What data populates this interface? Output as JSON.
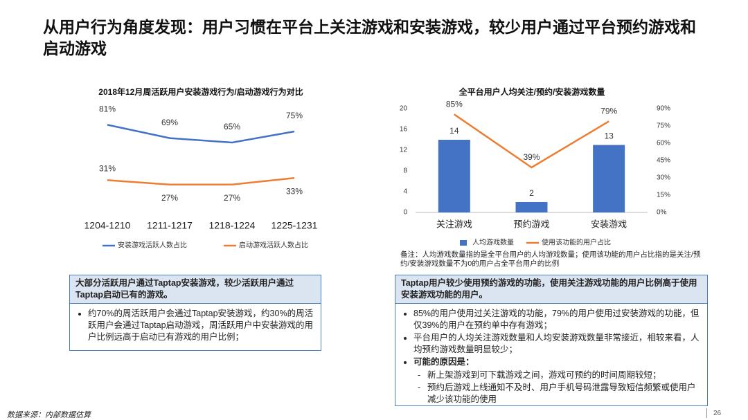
{
  "title": "从用户行为角度发现：用户习惯在平台上关注游戏和安装游戏，较少用户通过平台预约游戏和启动游戏",
  "chart_data": [
    {
      "type": "line",
      "title": "2018年12月周活跃用户安装游戏行为/启动游戏行为对比",
      "categories": [
        "1204-1210",
        "1211-1217",
        "1218-1224",
        "1225-1231"
      ],
      "series": [
        {
          "name": "安装游戏活跃人数占比",
          "color": "#4472c4",
          "values": [
            81,
            69,
            65,
            75
          ],
          "value_labels": [
            "81%",
            "69%",
            "65%",
            "75%"
          ]
        },
        {
          "name": "启动游戏活跃人数占比",
          "color": "#ed7d31",
          "values": [
            31,
            27,
            27,
            33
          ],
          "value_labels": [
            "31%",
            "27%",
            "27%",
            "33%"
          ]
        }
      ],
      "ylim": [
        0,
        100
      ]
    },
    {
      "type": "bar",
      "title": "全平台用户人均关注/预约/安装游戏数量",
      "categories": [
        "关注游戏",
        "预约游戏",
        "安装游戏"
      ],
      "series": [
        {
          "name": "人均游戏数量",
          "color": "#4472c4",
          "values": [
            14,
            2,
            13
          ]
        },
        {
          "name": "使用该功能的用户占比",
          "color": "#ed7d31",
          "type": "line",
          "axis": "y2",
          "values": [
            85,
            39,
            79
          ],
          "value_labels": [
            "85%",
            "39%",
            "79%"
          ]
        }
      ],
      "ylim": [
        0,
        20
      ],
      "yticks": [
        0,
        4,
        8,
        12,
        16,
        20
      ],
      "y2lim": [
        0,
        90
      ],
      "y2ticks": [
        {
          "value": 0,
          "label": "0%"
        },
        {
          "value": 15,
          "label": "15%"
        },
        {
          "value": 30,
          "label": "30%"
        },
        {
          "value": 45,
          "label": "45%"
        },
        {
          "value": 60,
          "label": "60%"
        },
        {
          "value": 75,
          "label": "75%"
        },
        {
          "value": 90,
          "label": "90%"
        }
      ],
      "note": "备注：人均游戏数量指的是全平台用户的人均游戏数量；使用该功能的用户占比指的是关注/预约/安装游戏数量不为0的用户占全平台用户的比例"
    }
  ],
  "boxes": [
    {
      "heading": "大部分活跃用户通过Taptap安装游戏，较少活跃用户通过Taptap启动已有的游戏。",
      "bullets": [
        "约70%的周活跃用户会通过Taptap安装游戏，约30%的周活跃用户会通过Taptap启动游戏，周活跃用户中安装游戏的用户比例远高于启动已有游戏的用户比例；"
      ]
    },
    {
      "heading": "Taptap用户较少使用预约游戏的功能，使用关注游戏功能的用户比例高于使用安装游戏功能的用户。",
      "bullets": [
        "85%的用户使用过关注游戏的功能，79%的用户使用过安装游戏的功能，但仅39%的用户在预约单中存有游戏；",
        "平台用户的人均关注游戏数量和人均安装游戏数量非常接近，相较来看，人均预约游戏数量明显较少；",
        "可能的原因是："
      ],
      "sub_bullets": [
        "新上架游戏到可下载游戏之间，游戏可预约的时间周期较短；",
        "预约后游戏上线通知不及时、用户手机号码泄露导致短信频繁或使用户减少该功能的使用"
      ]
    }
  ],
  "source": "数据来源：内部数据估算",
  "page_number": "26"
}
